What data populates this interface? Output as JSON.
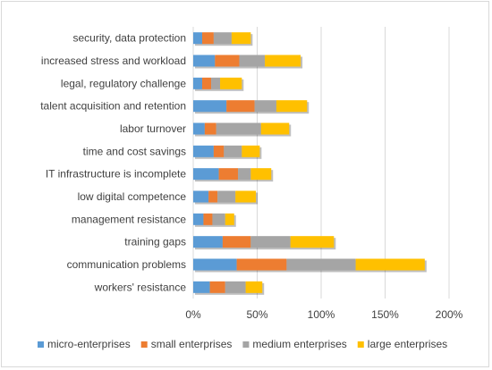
{
  "chart_data": {
    "type": "bar",
    "orientation": "horizontal",
    "stacked": true,
    "categories": [
      "security, data protection",
      "increased stress and workload",
      "legal, regulatory challenge",
      "talent acquisition and retention",
      "labor turnover",
      "time and cost savings",
      "IT infrastructure is incomplete",
      "low digital competence",
      "management resistance",
      "training gaps",
      "communication problems",
      "workers' resistance"
    ],
    "series": [
      {
        "name": "micro-enterprises",
        "color": "#5b9bd5",
        "values": [
          7,
          17,
          7,
          26,
          9,
          16,
          20,
          12,
          8,
          23,
          34,
          13
        ]
      },
      {
        "name": "small enterprises",
        "color": "#ed7d31",
        "values": [
          9,
          19,
          7,
          22,
          9,
          8,
          15,
          7,
          7,
          22,
          39,
          12
        ]
      },
      {
        "name": "medium enterprises",
        "color": "#a5a5a5",
        "values": [
          14,
          20,
          7,
          17,
          35,
          14,
          10,
          14,
          10,
          31,
          54,
          16
        ]
      },
      {
        "name": "large enterprises",
        "color": "#ffc000",
        "values": [
          15,
          28,
          17,
          24,
          22,
          14,
          16,
          16,
          7,
          34,
          54,
          13
        ]
      }
    ],
    "xlim": [
      0,
      200
    ],
    "xticks": [
      0,
      50,
      100,
      150,
      200
    ],
    "xtick_labels": [
      "0%",
      "50%",
      "100%",
      "150%",
      "200%"
    ],
    "grid": "vertical",
    "legend": "bottom"
  }
}
